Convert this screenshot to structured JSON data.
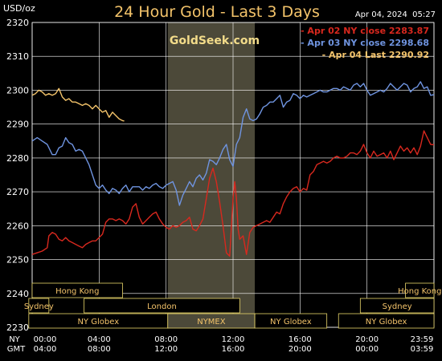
{
  "header": {
    "unit": "USD/oz",
    "title": "24 Hour Gold - Last 3 Days",
    "date": "Apr 04, 2024  05:27"
  },
  "watermark": "GoldSeek.com",
  "colors": {
    "background": "#000000",
    "grid": "#ffffff",
    "apr02": "#d8281e",
    "apr03": "#6f94e0",
    "apr04": "#f3c36a",
    "nymex_band": "#4c4939",
    "session_border": "#e8d56a",
    "session_text": "#f3c36a",
    "axis_text": "#ffffff"
  },
  "chart_data": {
    "type": "line",
    "title": "24 Hour Gold - Last 3 Days",
    "ylabel": "USD/oz",
    "ylim": [
      2230,
      2320
    ],
    "yticks": [
      2230,
      2240,
      2250,
      2260,
      2270,
      2280,
      2290,
      2300,
      2310,
      2320
    ],
    "xlim": [
      0,
      24
    ],
    "grid": true,
    "legend_position": "top-right",
    "x_ticks_ny": [
      "00:00",
      "04:00",
      "08:00",
      "12:00",
      "16:00",
      "20:00",
      "23:59"
    ],
    "x_ticks_gmt": [
      "04:00",
      "08:00",
      "12:00",
      "16:00",
      "20:00",
      "00:00",
      "03:59"
    ],
    "x_axis_labels": [
      "NY",
      "GMT"
    ],
    "nymex_band": [
      8.1,
      13.3
    ],
    "series": [
      {
        "name": "Apr 02 NY close 2283.87",
        "color": "#d8281e",
        "x": [
          0,
          0.3,
          0.6,
          0.9,
          1.0,
          1.2,
          1.4,
          1.6,
          1.8,
          2.0,
          2.2,
          2.4,
          2.6,
          2.8,
          3.0,
          3.2,
          3.4,
          3.6,
          3.8,
          4.0,
          4.2,
          4.4,
          4.6,
          4.8,
          5.0,
          5.2,
          5.4,
          5.6,
          5.8,
          6.0,
          6.2,
          6.4,
          6.6,
          6.8,
          7.0,
          7.2,
          7.4,
          7.6,
          7.8,
          8.0,
          8.2,
          8.4,
          8.6,
          8.8,
          9.0,
          9.2,
          9.4,
          9.6,
          9.8,
          10.0,
          10.2,
          10.4,
          10.6,
          10.8,
          11.0,
          11.2,
          11.4,
          11.6,
          11.8,
          12.0,
          12.1,
          12.2,
          12.3,
          12.4,
          12.6,
          12.8,
          13.0,
          13.2,
          13.4,
          13.6,
          13.8,
          14.0,
          14.2,
          14.4,
          14.6,
          14.8,
          15.0,
          15.2,
          15.4,
          15.6,
          15.8,
          16.0,
          16.2,
          16.4,
          16.6,
          16.8,
          17.0,
          17.2,
          17.4,
          17.6,
          17.8,
          18.0,
          18.2,
          18.4,
          18.6,
          18.8,
          19.0,
          19.2,
          19.4,
          19.6,
          19.8,
          20.0,
          20.2,
          20.4,
          20.6,
          20.8,
          21.0,
          21.2,
          21.4,
          21.6,
          21.8,
          22.0,
          22.2,
          22.4,
          22.6,
          22.8,
          23.0,
          23.2,
          23.4,
          23.6,
          23.8,
          24.0
        ],
        "values": [
          2251.5,
          2252,
          2252.5,
          2253.5,
          2257,
          2258,
          2257.5,
          2256,
          2255.5,
          2256.5,
          2255.5,
          2255,
          2254.5,
          2254,
          2253.5,
          2254.5,
          2255,
          2255.5,
          2255.5,
          2256.5,
          2257.5,
          2261,
          2262,
          2262,
          2261.5,
          2262,
          2261.5,
          2260.5,
          2262,
          2265.5,
          2266.5,
          2262.5,
          2260.5,
          2261.5,
          2262.5,
          2263.5,
          2264,
          2262,
          2260.5,
          2259.5,
          2259,
          2260,
          2259.5,
          2260,
          2261,
          2261.5,
          2262.5,
          2259,
          2258.5,
          2260,
          2262,
          2268,
          2274,
          2277,
          2273,
          2267,
          2260,
          2252,
          2251,
          2268,
          2273,
          2268,
          2259,
          2256,
          2257,
          2251.5,
          2258,
          2259.5,
          2260,
          2260.5,
          2261,
          2261.5,
          2261,
          2262.5,
          2264,
          2263.5,
          2266.5,
          2268.5,
          2270,
          2271,
          2271.5,
          2270,
          2271,
          2270.5,
          2275,
          2276,
          2278,
          2278.5,
          2279,
          2278.5,
          2279,
          2280,
          2280.5,
          2280,
          2280,
          2280.5,
          2281.5,
          2281.5,
          2281,
          2282,
          2284,
          2281.5,
          2280,
          2282,
          2280.5,
          2281,
          2281.5,
          2280,
          2282,
          2279.5,
          2281.5,
          2283.5,
          2282,
          2283,
          2281.5,
          2283,
          2281,
          2283.5,
          2288,
          2286,
          2284,
          2283.87
        ]
      },
      {
        "name": "Apr 03 NY close 2298.68",
        "color": "#6f94e0",
        "x": [
          0,
          0.3,
          0.6,
          0.9,
          1.2,
          1.4,
          1.6,
          1.8,
          2.0,
          2.2,
          2.4,
          2.6,
          2.8,
          3.0,
          3.2,
          3.4,
          3.6,
          3.8,
          4.0,
          4.2,
          4.4,
          4.6,
          4.8,
          5.0,
          5.2,
          5.4,
          5.6,
          5.8,
          6.0,
          6.2,
          6.4,
          6.6,
          6.8,
          7.0,
          7.2,
          7.4,
          7.6,
          7.8,
          8.0,
          8.2,
          8.4,
          8.6,
          8.8,
          9.0,
          9.2,
          9.4,
          9.6,
          9.8,
          10.0,
          10.2,
          10.4,
          10.6,
          10.8,
          11.0,
          11.2,
          11.4,
          11.6,
          11.8,
          12.0,
          12.2,
          12.4,
          12.6,
          12.8,
          13.0,
          13.2,
          13.4,
          13.6,
          13.8,
          14.0,
          14.2,
          14.4,
          14.6,
          14.8,
          15.0,
          15.2,
          15.4,
          15.6,
          15.8,
          16.0,
          16.2,
          16.4,
          16.6,
          16.8,
          17.0,
          17.2,
          17.4,
          17.6,
          17.8,
          18.0,
          18.2,
          18.4,
          18.6,
          18.8,
          19.0,
          19.2,
          19.4,
          19.6,
          19.8,
          20.0,
          20.2,
          20.4,
          20.6,
          20.8,
          21.0,
          21.2,
          21.4,
          21.6,
          21.8,
          22.0,
          22.2,
          22.4,
          22.6,
          22.8,
          23.0,
          23.2,
          23.4,
          23.6,
          23.8,
          24.0
        ],
        "values": [
          2285,
          2286,
          2285,
          2284,
          2281,
          2281,
          2283,
          2283.5,
          2286,
          2284.5,
          2284,
          2282,
          2282.5,
          2282,
          2280,
          2278,
          2275,
          2272,
          2271,
          2272,
          2270.5,
          2269.5,
          2271,
          2270.5,
          2269.5,
          2271,
          2272,
          2270,
          2271.5,
          2271.5,
          2271.5,
          2270.5,
          2271.5,
          2271,
          2272,
          2272.5,
          2271.5,
          2271,
          2272,
          2272.5,
          2273,
          2270.5,
          2266,
          2269,
          2271,
          2273,
          2271.5,
          2274,
          2275,
          2273.5,
          2275.5,
          2279.5,
          2279,
          2278,
          2280,
          2282.5,
          2284,
          2279.5,
          2277.5,
          2284,
          2286,
          2292,
          2294.5,
          2291.5,
          2291,
          2291.5,
          2293,
          2295,
          2295.5,
          2296.5,
          2296.5,
          2297.5,
          2298.5,
          2295,
          2296.5,
          2297,
          2299,
          2298.5,
          2297.5,
          2298.5,
          2298,
          2298.5,
          2299,
          2299.5,
          2300,
          2299.5,
          2299.5,
          2300,
          2300.5,
          2300.5,
          2300,
          2301,
          2300.5,
          2300,
          2301.5,
          2302,
          2301,
          2302,
          2300,
          2298.5,
          2299,
          2299.5,
          2300,
          2299.5,
          2300.5,
          2302,
          2301,
          2300,
          2301,
          2302,
          2301.5,
          2299.5,
          2300.5,
          2301,
          2302.5,
          2300.5,
          2301,
          2298.5,
          2298.68
        ]
      },
      {
        "name": "Apr 04 Last 2290.92",
        "color": "#f3c36a",
        "x": [
          0,
          0.2,
          0.4,
          0.6,
          0.8,
          1.0,
          1.2,
          1.4,
          1.6,
          1.8,
          2.0,
          2.2,
          2.4,
          2.6,
          2.8,
          3.0,
          3.2,
          3.4,
          3.6,
          3.8,
          4.0,
          4.2,
          4.4,
          4.6,
          4.8,
          5.0,
          5.2,
          5.4,
          5.5
        ],
        "values": [
          2298.5,
          2299,
          2300,
          2299.5,
          2298.5,
          2299,
          2298.5,
          2299,
          2300.5,
          2298,
          2297,
          2297.5,
          2296.5,
          2296.5,
          2296,
          2295.5,
          2296,
          2295.5,
          2294.5,
          2295.5,
          2294.5,
          2293.5,
          2294,
          2292,
          2293.5,
          2292.5,
          2291.5,
          2291,
          2290.92
        ]
      }
    ],
    "sessions": [
      {
        "label": "Hong Kong",
        "row": 0,
        "start": 0,
        "end": 5.4
      },
      {
        "label": "Hong Kong",
        "row": 0,
        "start": 22.3,
        "end": 24
      },
      {
        "label": "Sydney",
        "row": 1,
        "start": -0.2,
        "end": 1.0
      },
      {
        "label": "London",
        "row": 1,
        "start": 3.1,
        "end": 12.4
      },
      {
        "label": "Sydney",
        "row": 1,
        "start": 19.6,
        "end": 24
      },
      {
        "label": "NY Globex",
        "row": 2,
        "start": -0.2,
        "end": 8.1
      },
      {
        "label": "NYMEX",
        "row": 2,
        "start": 8.1,
        "end": 13.3
      },
      {
        "label": "NY Globex",
        "row": 2,
        "start": 13.3,
        "end": 17.6
      },
      {
        "label": "NY Globex",
        "row": 2,
        "start": 18.3,
        "end": 24
      }
    ]
  }
}
